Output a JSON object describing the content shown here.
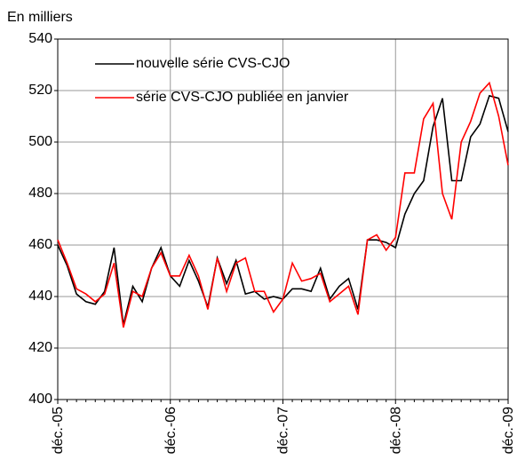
{
  "chart_data": {
    "type": "line",
    "ylabel": "En milliers",
    "categories": [
      "déc.-05",
      null,
      null,
      null,
      null,
      null,
      null,
      null,
      null,
      null,
      null,
      null,
      "déc.-06",
      null,
      null,
      null,
      null,
      null,
      null,
      null,
      null,
      null,
      null,
      null,
      "déc.-07",
      null,
      null,
      null,
      null,
      null,
      null,
      null,
      null,
      null,
      null,
      null,
      "déc.-08",
      null,
      null,
      null,
      null,
      null,
      null,
      null,
      null,
      null,
      null,
      null,
      "déc.-09"
    ],
    "series": [
      {
        "name": "nouvelle série CVS-CJO",
        "color": "#000000",
        "values": [
          460,
          452,
          441,
          438,
          437,
          442,
          459,
          429,
          444,
          438,
          451,
          459,
          448,
          444,
          454,
          446,
          436,
          455,
          445,
          454,
          441,
          442,
          439,
          440,
          439,
          443,
          443,
          442,
          451,
          439,
          444,
          447,
          435,
          462,
          462,
          461,
          459,
          472,
          480,
          485,
          506,
          517,
          485,
          485,
          502,
          507,
          518,
          517,
          504
        ]
      },
      {
        "name": "série CVS-CJO publiée en janvier",
        "color": "#ff0000",
        "values": [
          462,
          453,
          443,
          441,
          438,
          441,
          453,
          428,
          442,
          440,
          451,
          457,
          448,
          448,
          456,
          448,
          435,
          455,
          442,
          453,
          455,
          442,
          442,
          434,
          439,
          453,
          446,
          447,
          449,
          438,
          441,
          444,
          433,
          462,
          464,
          458,
          463,
          488,
          488,
          509,
          515,
          480,
          470,
          500,
          508,
          519,
          523,
          510,
          491
        ]
      }
    ],
    "ylim": [
      400,
      540
    ],
    "yticks": [
      400,
      420,
      440,
      460,
      480,
      500,
      520,
      540
    ],
    "grid": true,
    "legend": "upper left"
  }
}
